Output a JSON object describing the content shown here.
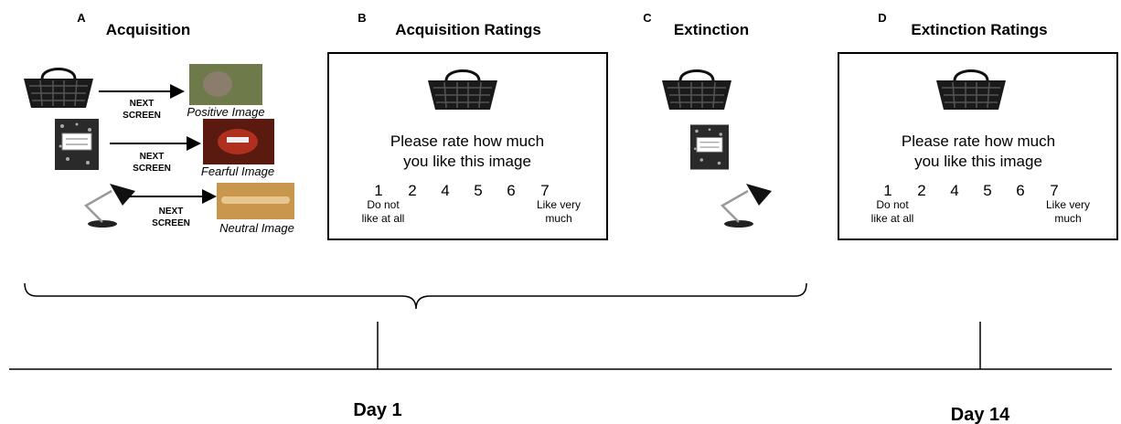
{
  "panels": [
    {
      "letter": "A",
      "title": "Acquisition",
      "steps": [
        {
          "arrow_label": [
            "NEXT",
            "SCREEN"
          ],
          "caption": "Positive Image"
        },
        {
          "arrow_label": [
            "NEXT",
            "SCREEN"
          ],
          "caption": "Fearful Image"
        },
        {
          "arrow_label": [
            "NEXT",
            "SCREEN"
          ],
          "caption": "Neutral Image"
        }
      ]
    },
    {
      "letter": "B",
      "title": "Acquisition Ratings",
      "prompt": [
        "Please rate how much",
        "you like this image"
      ],
      "scale": [
        1,
        2,
        4,
        5,
        6,
        7
      ],
      "low_anchor": [
        "Do not",
        "like at all"
      ],
      "high_anchor": [
        "Like very",
        "much"
      ]
    },
    {
      "letter": "C",
      "title": "Extinction"
    },
    {
      "letter": "D",
      "title": "Extinction Ratings",
      "prompt": [
        "Please rate how much",
        "you like this image"
      ],
      "scale": [
        1,
        2,
        4,
        5,
        6,
        7
      ],
      "low_anchor": [
        "Do not",
        "like at all"
      ],
      "high_anchor": [
        "Like very",
        "much"
      ]
    }
  ],
  "timeline": {
    "days": [
      "Day 1",
      "Day 14"
    ]
  }
}
